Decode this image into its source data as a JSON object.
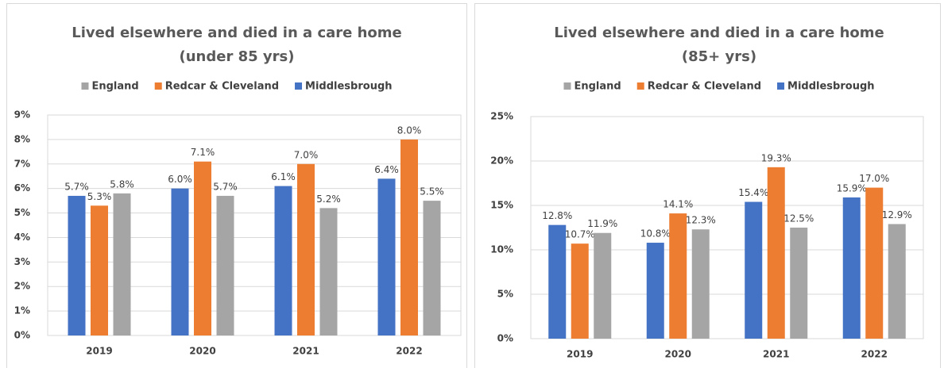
{
  "chart_data": [
    {
      "type": "bar",
      "title": [
        "Lived elsewhere and died in a care home",
        "(under 85 yrs)"
      ],
      "categories": [
        "2019",
        "2020",
        "2021",
        "2022"
      ],
      "series": [
        {
          "name": "Middlesbrough",
          "color": "#4472c4",
          "values": [
            5.7,
            6.0,
            6.1,
            6.4
          ],
          "value_labels": [
            "5.7%",
            "6.0%",
            "6.1%",
            "6.4%"
          ]
        },
        {
          "name": "Redcar & Cleveland",
          "color": "#ed7d31",
          "values": [
            5.3,
            7.1,
            7.0,
            8.0
          ],
          "value_labels": [
            "5.3%",
            "7.1%",
            "7.0%",
            "8.0%"
          ]
        },
        {
          "name": "England",
          "color": "#a5a5a5",
          "values": [
            5.8,
            5.7,
            5.2,
            5.5
          ],
          "value_labels": [
            "5.8%",
            "5.7%",
            "5.2%",
            "5.5%"
          ]
        }
      ],
      "ylim": [
        0,
        9
      ],
      "yticks": [
        {
          "value": 0,
          "label": "0%"
        },
        {
          "value": 1,
          "label": "1%"
        },
        {
          "value": 2,
          "label": "2%"
        },
        {
          "value": 3,
          "label": "3%"
        },
        {
          "value": 4,
          "label": "4%"
        },
        {
          "value": 5,
          "label": "5%"
        },
        {
          "value": 6,
          "label": "6%"
        },
        {
          "value": 7,
          "label": "7%"
        },
        {
          "value": 8,
          "label": "8%"
        },
        {
          "value": 9,
          "label": "9%"
        }
      ],
      "grid": true,
      "legend": "top"
    },
    {
      "type": "bar",
      "title": [
        "Lived elsewhere and died in a care home",
        "(85+ yrs)"
      ],
      "categories": [
        "2019",
        "2020",
        "2021",
        "2022"
      ],
      "series": [
        {
          "name": "Middlesbrough",
          "color": "#4472c4",
          "values": [
            12.8,
            10.8,
            15.4,
            15.9
          ],
          "value_labels": [
            "12.8%",
            "10.8%",
            "15.4%",
            "15.9%"
          ]
        },
        {
          "name": "Redcar & Cleveland",
          "color": "#ed7d31",
          "values": [
            10.7,
            14.1,
            19.3,
            17.0
          ],
          "value_labels": [
            "10.7%",
            "14.1%",
            "19.3%",
            "17.0%"
          ]
        },
        {
          "name": "England",
          "color": "#a5a5a5",
          "values": [
            11.9,
            12.3,
            12.5,
            12.9
          ],
          "value_labels": [
            "11.9%",
            "12.3%",
            "12.5%",
            "12.9%"
          ]
        }
      ],
      "ylim": [
        0,
        25
      ],
      "yticks": [
        {
          "value": 0,
          "label": "0%"
        },
        {
          "value": 5,
          "label": "5%"
        },
        {
          "value": 10,
          "label": "10%"
        },
        {
          "value": 15,
          "label": "15%"
        },
        {
          "value": 20,
          "label": "20%"
        },
        {
          "value": 25,
          "label": "25%"
        }
      ],
      "grid": true,
      "legend": "top"
    }
  ]
}
